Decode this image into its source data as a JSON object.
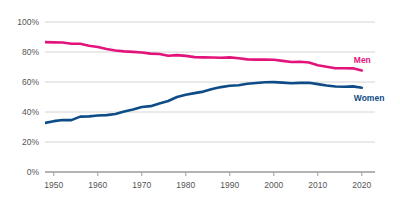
{
  "chart_data": {
    "type": "line",
    "x": [
      1948,
      1950,
      1952,
      1954,
      1956,
      1958,
      1960,
      1962,
      1964,
      1966,
      1968,
      1970,
      1972,
      1974,
      1976,
      1978,
      1980,
      1982,
      1984,
      1986,
      1988,
      1990,
      1992,
      1994,
      1996,
      1998,
      2000,
      2002,
      2004,
      2006,
      2008,
      2010,
      2012,
      2014,
      2016,
      2018,
      2020
    ],
    "series": [
      {
        "name": "Men",
        "color": "#e3137c",
        "values": [
          86.6,
          86.4,
          86.3,
          85.5,
          85.5,
          84.2,
          83.3,
          82.0,
          81.0,
          80.4,
          80.1,
          79.7,
          78.9,
          78.7,
          77.5,
          77.9,
          77.4,
          76.6,
          76.4,
          76.3,
          76.2,
          76.4,
          75.8,
          75.1,
          74.9,
          74.9,
          74.8,
          74.1,
          73.3,
          73.5,
          73.0,
          71.2,
          70.2,
          69.2,
          69.2,
          69.1,
          67.7
        ]
      },
      {
        "name": "Women",
        "color": "#0d4c86",
        "values": [
          32.7,
          33.9,
          34.7,
          34.6,
          36.9,
          37.1,
          37.7,
          37.9,
          38.7,
          40.3,
          41.6,
          43.3,
          43.9,
          45.7,
          47.3,
          50.0,
          51.5,
          52.6,
          53.6,
          55.3,
          56.6,
          57.5,
          57.8,
          58.8,
          59.3,
          59.8,
          59.9,
          59.6,
          59.2,
          59.4,
          59.5,
          58.6,
          57.7,
          57.0,
          56.8,
          57.1,
          56.2
        ]
      }
    ],
    "xlim": [
      1948,
      2023
    ],
    "xticks": [
      1950,
      1960,
      1970,
      1980,
      1990,
      2000,
      2010,
      2020
    ],
    "ylim": [
      0,
      100
    ],
    "yticks": [
      {
        "value": 0,
        "label": "0%"
      },
      {
        "value": 20,
        "label": "20%"
      },
      {
        "value": 40,
        "label": "40%"
      },
      {
        "value": 60,
        "label": "60%"
      },
      {
        "value": 80,
        "label": "80%"
      },
      {
        "value": 100,
        "label": "100%"
      }
    ],
    "grid": true
  }
}
